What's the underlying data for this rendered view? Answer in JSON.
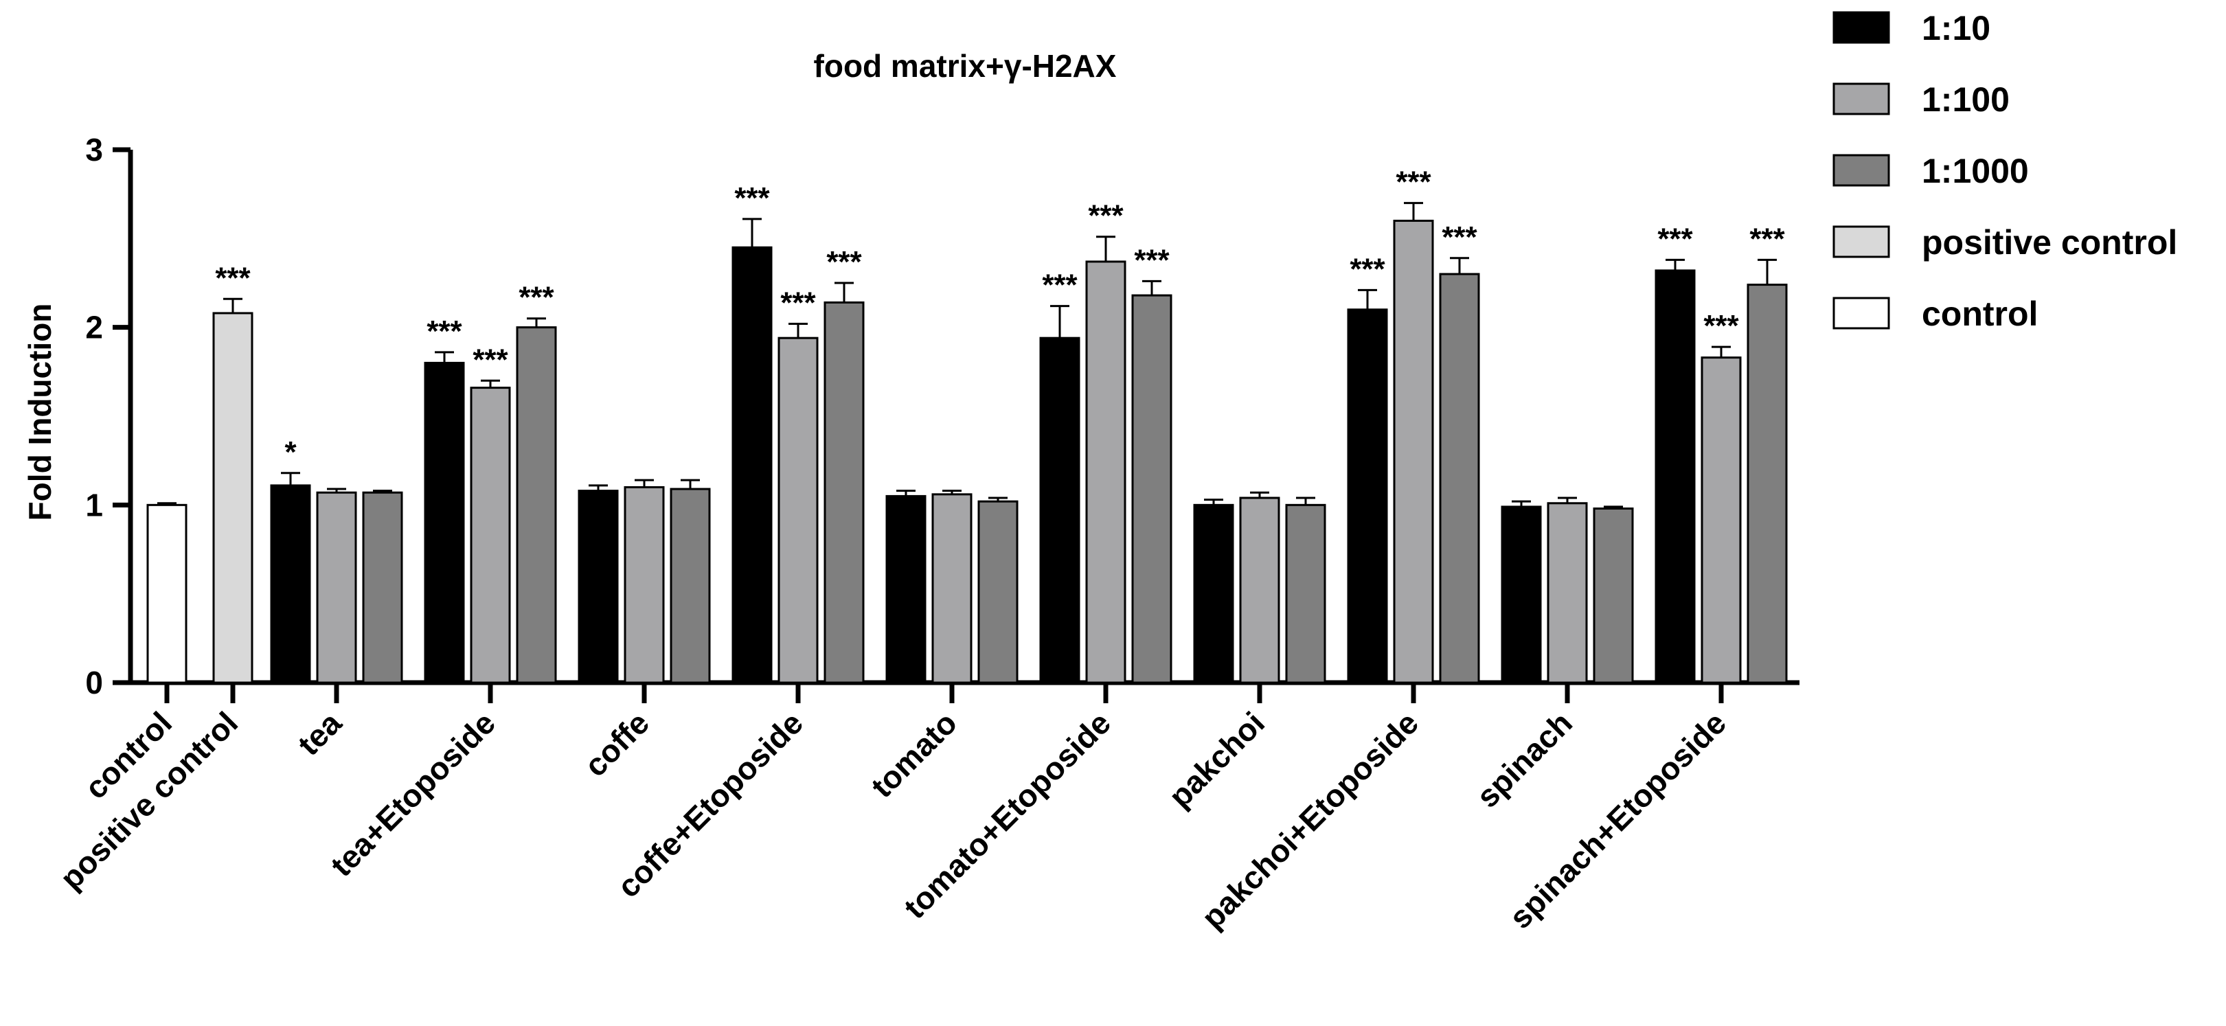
{
  "chart_data": {
    "type": "bar",
    "title": "food matrix+γ-H2AX",
    "xlabel": "",
    "ylabel": "Fold Induction",
    "ylim": [
      0,
      3
    ],
    "yticks": [
      "0",
      "1",
      "2",
      "3"
    ],
    "legend_position": "top-right",
    "series": [
      {
        "name": "1:10",
        "color": "#000000"
      },
      {
        "name": "1:100",
        "color": "#a6a6a8"
      },
      {
        "name": "1:1000",
        "color": "#7f7f7f"
      },
      {
        "name": "positive control",
        "color": "#d9d9d9"
      },
      {
        "name": "control",
        "color": "#ffffff"
      }
    ],
    "categories": [
      {
        "label": "control",
        "bars": [
          {
            "series": 4,
            "value": 1.0,
            "err": 0.01,
            "sig": ""
          }
        ]
      },
      {
        "label": "positive control",
        "bars": [
          {
            "series": 3,
            "value": 2.08,
            "err": 0.08,
            "sig": "***"
          }
        ]
      },
      {
        "label": "tea",
        "bars": [
          {
            "series": 0,
            "value": 1.11,
            "err": 0.07,
            "sig": "*"
          },
          {
            "series": 1,
            "value": 1.07,
            "err": 0.02,
            "sig": ""
          },
          {
            "series": 2,
            "value": 1.07,
            "err": 0.01,
            "sig": ""
          }
        ]
      },
      {
        "label": "tea+Etoposide",
        "bars": [
          {
            "series": 0,
            "value": 1.8,
            "err": 0.06,
            "sig": "***"
          },
          {
            "series": 1,
            "value": 1.66,
            "err": 0.04,
            "sig": "***"
          },
          {
            "series": 2,
            "value": 2.0,
            "err": 0.05,
            "sig": "***"
          }
        ]
      },
      {
        "label": "coffe",
        "bars": [
          {
            "series": 0,
            "value": 1.08,
            "err": 0.03,
            "sig": ""
          },
          {
            "series": 1,
            "value": 1.1,
            "err": 0.04,
            "sig": ""
          },
          {
            "series": 2,
            "value": 1.09,
            "err": 0.05,
            "sig": ""
          }
        ]
      },
      {
        "label": "coffe+Etoposide",
        "bars": [
          {
            "series": 0,
            "value": 2.45,
            "err": 0.16,
            "sig": "***"
          },
          {
            "series": 1,
            "value": 1.94,
            "err": 0.08,
            "sig": "***"
          },
          {
            "series": 2,
            "value": 2.14,
            "err": 0.11,
            "sig": "***"
          }
        ]
      },
      {
        "label": "tomato",
        "bars": [
          {
            "series": 0,
            "value": 1.05,
            "err": 0.03,
            "sig": ""
          },
          {
            "series": 1,
            "value": 1.06,
            "err": 0.02,
            "sig": ""
          },
          {
            "series": 2,
            "value": 1.02,
            "err": 0.02,
            "sig": ""
          }
        ]
      },
      {
        "label": "tomato+Etoposide",
        "bars": [
          {
            "series": 0,
            "value": 1.94,
            "err": 0.18,
            "sig": "***"
          },
          {
            "series": 1,
            "value": 2.37,
            "err": 0.14,
            "sig": "***"
          },
          {
            "series": 2,
            "value": 2.18,
            "err": 0.08,
            "sig": "***"
          }
        ]
      },
      {
        "label": "pakchoi",
        "bars": [
          {
            "series": 0,
            "value": 1.0,
            "err": 0.03,
            "sig": ""
          },
          {
            "series": 1,
            "value": 1.04,
            "err": 0.03,
            "sig": ""
          },
          {
            "series": 2,
            "value": 1.0,
            "err": 0.04,
            "sig": ""
          }
        ]
      },
      {
        "label": "pakchoi+Etoposide",
        "bars": [
          {
            "series": 0,
            "value": 2.1,
            "err": 0.11,
            "sig": "***"
          },
          {
            "series": 1,
            "value": 2.6,
            "err": 0.1,
            "sig": "***"
          },
          {
            "series": 2,
            "value": 2.3,
            "err": 0.09,
            "sig": "***"
          }
        ]
      },
      {
        "label": "spinach",
        "bars": [
          {
            "series": 0,
            "value": 0.99,
            "err": 0.03,
            "sig": ""
          },
          {
            "series": 1,
            "value": 1.01,
            "err": 0.03,
            "sig": ""
          },
          {
            "series": 2,
            "value": 0.98,
            "err": 0.01,
            "sig": ""
          }
        ]
      },
      {
        "label": "spinach+Etoposide",
        "bars": [
          {
            "series": 0,
            "value": 2.32,
            "err": 0.06,
            "sig": "***"
          },
          {
            "series": 1,
            "value": 1.83,
            "err": 0.06,
            "sig": "***"
          },
          {
            "series": 2,
            "value": 2.24,
            "err": 0.14,
            "sig": "***"
          }
        ]
      }
    ]
  }
}
